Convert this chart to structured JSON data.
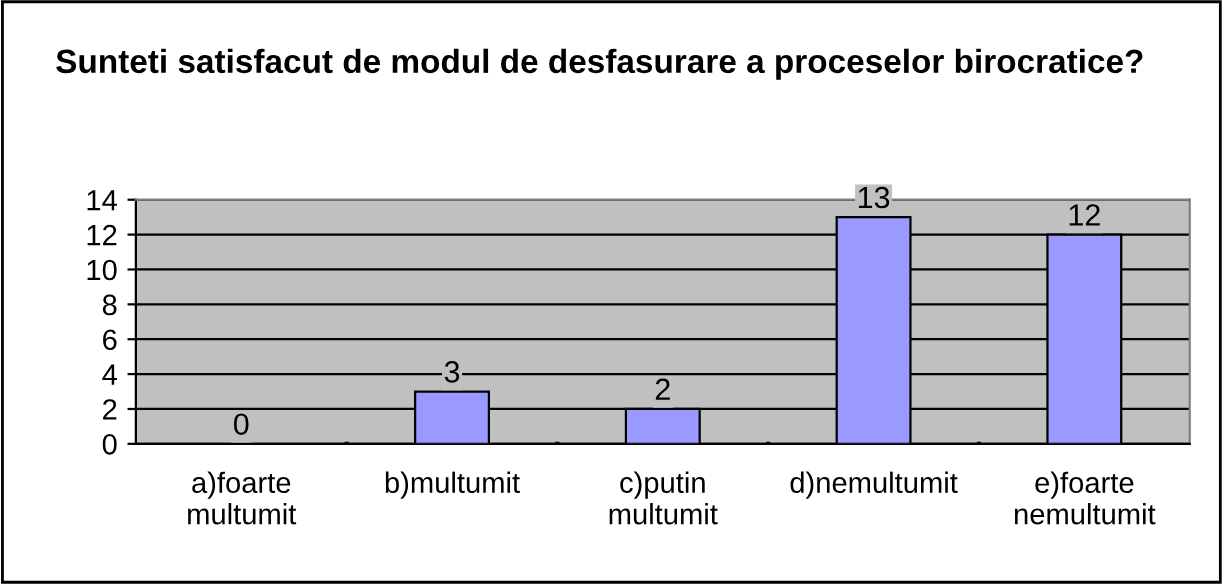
{
  "chart_data": {
    "type": "bar",
    "title": "Sunteti satisfacut de modul de desfasurare a proceselor birocratice?",
    "categories": [
      "a)foarte multumit",
      "b)multumit",
      "c)putin multumit",
      "d)nemultumit",
      "e)foarte nemultumit"
    ],
    "values": [
      0,
      3,
      2,
      13,
      12
    ],
    "color": "#9999ff",
    "ylim": [
      0,
      14
    ],
    "yticks": [
      0,
      2,
      4,
      6,
      8,
      10,
      12,
      14
    ],
    "grid": "y",
    "data_labels": true
  }
}
